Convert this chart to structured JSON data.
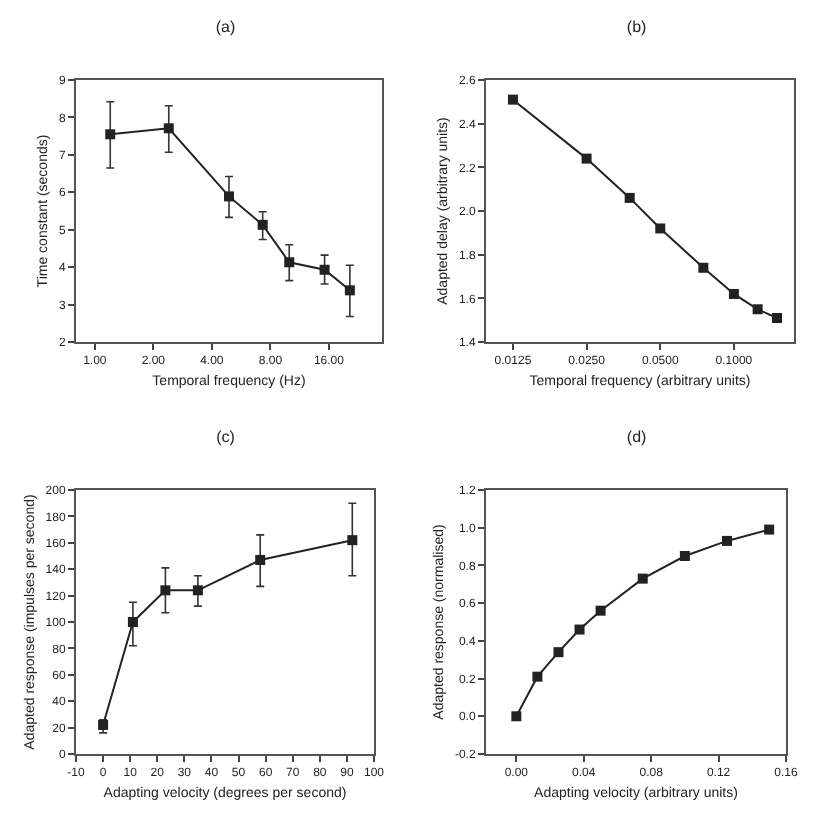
{
  "chart_data": [
    {
      "type": "line",
      "title": "(a)",
      "xlabel": "Temporal frequency (Hz)",
      "ylabel": "Time constant (seconds)",
      "log": "x",
      "xlim": [
        0.8,
        30
      ],
      "ylim": [
        2,
        9
      ],
      "xticks": [
        {
          "value": 1,
          "label": "1.00"
        },
        {
          "value": 2,
          "label": "2.00"
        },
        {
          "value": 4,
          "label": "4.00"
        },
        {
          "value": 8,
          "label": "8.00"
        },
        {
          "value": 16,
          "label": "16.00"
        }
      ],
      "yticks": [
        2,
        3,
        4,
        5,
        6,
        7,
        8,
        9
      ],
      "grid": false,
      "marker": "square",
      "line_style": "solid",
      "series": [
        {
          "color": "#222222",
          "x": [
            1.2,
            2.4,
            4.9,
            7.3,
            10,
            15.2,
            20.5
          ],
          "values": [
            7.55,
            7.71,
            5.89,
            5.13,
            4.13,
            3.93,
            3.38
          ],
          "errors": [
            [
              6.65,
              8.42
            ],
            [
              7.07,
              8.31
            ],
            [
              5.33,
              6.42
            ],
            [
              4.74,
              5.48
            ],
            [
              3.64,
              4.6
            ],
            [
              3.55,
              4.32
            ],
            [
              2.68,
              4.05
            ]
          ]
        }
      ]
    },
    {
      "type": "line",
      "title": "(b)",
      "xlabel": "Temporal frequency (arbitrary units)",
      "ylabel": "Adapted delay (arbitrary units)",
      "log": "x",
      "xlim": [
        0.0097,
        0.176
      ],
      "ylim": [
        1.4,
        2.6
      ],
      "xticks": [
        {
          "value": 0.0125,
          "label": "0.0125"
        },
        {
          "value": 0.025,
          "label": "0.0250"
        },
        {
          "value": 0.05,
          "label": "0.0500"
        },
        {
          "value": 0.1,
          "label": "0.1000"
        }
      ],
      "yticks": [
        {
          "value": 1.4,
          "label": "1.4"
        },
        {
          "value": 1.6,
          "label": "1.6"
        },
        {
          "value": 1.8,
          "label": "1.8"
        },
        {
          "value": 2,
          "label": "2.0"
        },
        {
          "value": 2.2,
          "label": "2.2"
        },
        {
          "value": 2.4,
          "label": "2.4"
        },
        {
          "value": 2.6,
          "label": "2.6"
        }
      ],
      "grid": false,
      "marker": "square",
      "line_style": "solid",
      "series": [
        {
          "color": "#222222",
          "x": [
            0.0125,
            0.025,
            0.0375,
            0.05,
            0.075,
            0.1,
            0.125,
            0.15
          ],
          "values": [
            2.51,
            2.24,
            2.06,
            1.92,
            1.74,
            1.62,
            1.55,
            1.51
          ]
        }
      ]
    },
    {
      "type": "line",
      "title": "(c)",
      "xlabel": "Adapting velocity (degrees per second)",
      "ylabel": "Adapted response (impulses per second)",
      "xlim": [
        -10,
        100
      ],
      "ylim": [
        0,
        200
      ],
      "xticks": [
        -10,
        0,
        10,
        20,
        30,
        40,
        50,
        60,
        70,
        80,
        90,
        100
      ],
      "yticks": [
        0,
        20,
        40,
        60,
        80,
        100,
        120,
        140,
        160,
        180,
        200
      ],
      "grid": false,
      "marker": "square",
      "line_style": "solid",
      "series": [
        {
          "color": "#222222",
          "x": [
            0,
            11,
            23,
            35,
            58,
            92
          ],
          "values": [
            22,
            100,
            124,
            124,
            147,
            162
          ],
          "errors": [
            [
              16,
              26
            ],
            [
              82,
              115
            ],
            [
              107,
              141
            ],
            [
              112,
              135
            ],
            [
              127,
              166
            ],
            [
              135,
              190
            ]
          ]
        }
      ]
    },
    {
      "type": "line",
      "title": "(d)",
      "xlabel": "Adapting velocity (arbitrary units)",
      "ylabel": "Adapted response (normalised)",
      "xlim": [
        -0.018,
        0.16
      ],
      "ylim": [
        -0.2,
        1.2
      ],
      "xticks": [
        {
          "value": 0,
          "label": "0.00"
        },
        {
          "value": 0.04,
          "label": "0.04"
        },
        {
          "value": 0.08,
          "label": "0.08"
        },
        {
          "value": 0.12,
          "label": "0.12"
        },
        {
          "value": 0.16,
          "label": "0.16"
        }
      ],
      "yticks": [
        {
          "value": -0.2,
          "label": "-0.2"
        },
        {
          "value": 0,
          "label": "0.0"
        },
        {
          "value": 0.2,
          "label": "0.2"
        },
        {
          "value": 0.4,
          "label": "0.4"
        },
        {
          "value": 0.6,
          "label": "0.6"
        },
        {
          "value": 0.8,
          "label": "0.8"
        },
        {
          "value": 1,
          "label": "1.0"
        },
        {
          "value": 1.2,
          "label": "1.2"
        }
      ],
      "grid": false,
      "marker": "square",
      "line_style": "solid",
      "series": [
        {
          "color": "#222222",
          "x": [
            0,
            0.0125,
            0.025,
            0.0375,
            0.05,
            0.075,
            0.1,
            0.125,
            0.15
          ],
          "values": [
            0,
            0.21,
            0.34,
            0.46,
            0.56,
            0.73,
            0.85,
            0.93,
            0.99
          ]
        }
      ]
    }
  ]
}
